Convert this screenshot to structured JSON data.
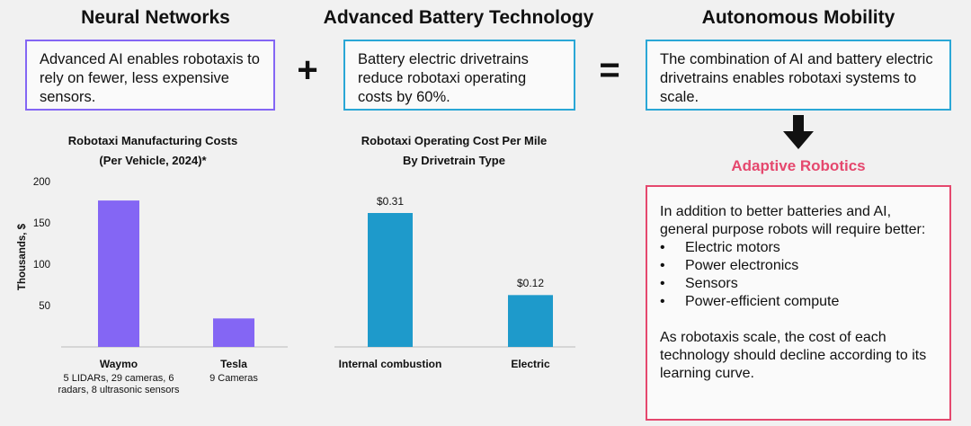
{
  "columns": {
    "neural": {
      "title": "Neural Networks",
      "text": "Advanced AI enables robotaxis to rely on fewer, less expensive sensors."
    },
    "battery": {
      "title": "Advanced Battery Technology",
      "text": "Battery electric drivetrains reduce robotaxi operating costs by 60%."
    },
    "mobility": {
      "title": "Autonomous Mobility",
      "text": "The combination of AI and battery electric drivetrains enables robotaxi systems to scale."
    }
  },
  "operators": {
    "plus": "+",
    "equals": "="
  },
  "adaptive": {
    "title": "Adaptive Robotics",
    "intro": "In addition to better batteries and AI, general purpose robots will require better:",
    "items": [
      "Electric motors",
      "Power electronics",
      "Sensors",
      "Power-efficient compute"
    ],
    "outro": "As robotaxis scale, the cost of each technology should decline according to its learning curve."
  },
  "colors": {
    "purple": "#8466f4",
    "blue": "#1e9acb",
    "pink": "#e5486e"
  },
  "chart_data": [
    {
      "type": "bar",
      "title_line1": "Robotaxi Manufacturing Costs",
      "title_line2": "(Per Vehicle, 2024)*",
      "ylabel": "Thousands, $",
      "ylim": [
        0,
        200
      ],
      "yticks": [
        50,
        100,
        150,
        200
      ],
      "categories": [
        "Waymo",
        "Tesla"
      ],
      "subtitles": [
        "5 LIDARs, 29 cameras, 6 radars, 8 ultrasonic sensors",
        "9 Cameras"
      ],
      "values": [
        180,
        35
      ]
    },
    {
      "type": "bar",
      "title_line1": "Robotaxi Operating Cost Per Mile",
      "title_line2": "By Drivetrain Type",
      "categories": [
        "Internal combustion",
        "Electric"
      ],
      "values": [
        0.31,
        0.12
      ],
      "data_labels": [
        "$0.31",
        "$0.12"
      ]
    }
  ]
}
